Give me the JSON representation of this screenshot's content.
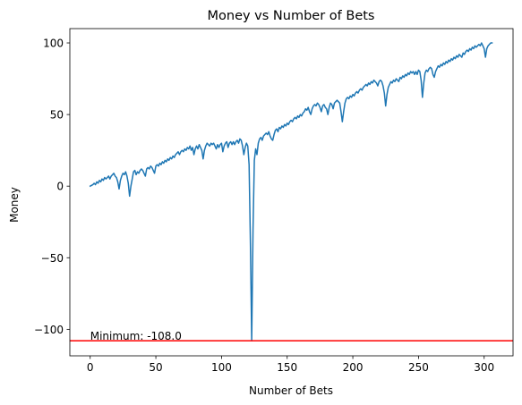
{
  "chart_data": {
    "type": "line",
    "title": "Money vs Number of Bets",
    "xlabel": "Number of Bets",
    "ylabel": "Money",
    "xlim": [
      -15.5,
      322
    ],
    "ylim": [
      -118.5,
      110
    ],
    "xticks": [
      0,
      50,
      100,
      150,
      200,
      250,
      300
    ],
    "yticks": [
      -100,
      -50,
      0,
      50,
      100
    ],
    "ytick_labels": [
      "−100",
      "−50",
      "0",
      "50",
      "100"
    ],
    "grid": false,
    "series": [
      {
        "color": "#1f77b4",
        "points": [
          [
            0,
            0
          ],
          [
            2,
            1
          ],
          [
            3,
            2
          ],
          [
            4,
            1
          ],
          [
            5,
            3
          ],
          [
            6,
            2
          ],
          [
            7,
            4
          ],
          [
            8,
            3
          ],
          [
            9,
            5
          ],
          [
            10,
            4
          ],
          [
            11,
            6
          ],
          [
            12,
            5
          ],
          [
            13,
            6
          ],
          [
            14,
            7
          ],
          [
            15,
            5
          ],
          [
            16,
            7
          ],
          [
            17,
            8
          ],
          [
            18,
            9
          ],
          [
            19,
            7
          ],
          [
            20,
            6
          ],
          [
            21,
            3
          ],
          [
            22,
            -2
          ],
          [
            23,
            4
          ],
          [
            24,
            7
          ],
          [
            25,
            9
          ],
          [
            26,
            8
          ],
          [
            27,
            10
          ],
          [
            28,
            7
          ],
          [
            29,
            2
          ],
          [
            30,
            -7
          ],
          [
            31,
            0
          ],
          [
            32,
            5
          ],
          [
            33,
            10
          ],
          [
            34,
            11
          ],
          [
            35,
            8
          ],
          [
            36,
            10
          ],
          [
            37,
            9
          ],
          [
            38,
            11
          ],
          [
            39,
            12
          ],
          [
            40,
            11
          ],
          [
            41,
            9
          ],
          [
            42,
            7
          ],
          [
            43,
            12
          ],
          [
            44,
            13
          ],
          [
            45,
            12
          ],
          [
            46,
            14
          ],
          [
            47,
            13
          ],
          [
            48,
            11
          ],
          [
            49,
            9
          ],
          [
            50,
            14
          ],
          [
            51,
            15
          ],
          [
            52,
            14
          ],
          [
            53,
            16
          ],
          [
            54,
            15
          ],
          [
            55,
            17
          ],
          [
            56,
            16
          ],
          [
            57,
            18
          ],
          [
            58,
            17
          ],
          [
            59,
            19
          ],
          [
            60,
            18
          ],
          [
            61,
            20
          ],
          [
            62,
            19
          ],
          [
            63,
            21
          ],
          [
            64,
            20
          ],
          [
            65,
            22
          ],
          [
            66,
            23
          ],
          [
            67,
            24
          ],
          [
            68,
            22
          ],
          [
            69,
            24
          ],
          [
            70,
            25
          ],
          [
            71,
            24
          ],
          [
            72,
            26
          ],
          [
            73,
            25
          ],
          [
            74,
            27
          ],
          [
            75,
            26
          ],
          [
            76,
            28
          ],
          [
            77,
            25
          ],
          [
            78,
            27
          ],
          [
            79,
            22
          ],
          [
            80,
            26
          ],
          [
            81,
            28
          ],
          [
            82,
            26
          ],
          [
            83,
            29
          ],
          [
            84,
            27
          ],
          [
            85,
            25
          ],
          [
            86,
            19
          ],
          [
            87,
            25
          ],
          [
            88,
            28
          ],
          [
            89,
            30
          ],
          [
            90,
            29
          ],
          [
            91,
            28
          ],
          [
            92,
            30
          ],
          [
            93,
            29
          ],
          [
            94,
            30
          ],
          [
            95,
            28
          ],
          [
            96,
            26
          ],
          [
            97,
            29
          ],
          [
            98,
            27
          ],
          [
            99,
            29
          ],
          [
            100,
            30
          ],
          [
            101,
            24
          ],
          [
            102,
            28
          ],
          [
            103,
            30
          ],
          [
            104,
            31
          ],
          [
            105,
            27
          ],
          [
            106,
            30
          ],
          [
            107,
            31
          ],
          [
            108,
            29
          ],
          [
            109,
            31
          ],
          [
            110,
            29
          ],
          [
            111,
            31
          ],
          [
            112,
            32
          ],
          [
            113,
            30
          ],
          [
            114,
            33
          ],
          [
            115,
            32
          ],
          [
            116,
            28
          ],
          [
            117,
            22
          ],
          [
            118,
            27
          ],
          [
            119,
            30
          ],
          [
            120,
            28
          ],
          [
            121,
            15
          ],
          [
            122,
            -40
          ],
          [
            123,
            -108
          ],
          [
            124,
            -30
          ],
          [
            125,
            18
          ],
          [
            126,
            26
          ],
          [
            127,
            22
          ],
          [
            128,
            30
          ],
          [
            129,
            33
          ],
          [
            130,
            34
          ],
          [
            131,
            32
          ],
          [
            132,
            35
          ],
          [
            133,
            36
          ],
          [
            134,
            37
          ],
          [
            135,
            36
          ],
          [
            136,
            38
          ],
          [
            137,
            35
          ],
          [
            138,
            33
          ],
          [
            139,
            32
          ],
          [
            140,
            36
          ],
          [
            141,
            39
          ],
          [
            142,
            40
          ],
          [
            143,
            38
          ],
          [
            144,
            41
          ],
          [
            145,
            40
          ],
          [
            146,
            42
          ],
          [
            147,
            41
          ],
          [
            148,
            43
          ],
          [
            149,
            42
          ],
          [
            150,
            44
          ],
          [
            151,
            43
          ],
          [
            152,
            45
          ],
          [
            153,
            46
          ],
          [
            154,
            45
          ],
          [
            155,
            47
          ],
          [
            156,
            48
          ],
          [
            157,
            47
          ],
          [
            158,
            49
          ],
          [
            159,
            48
          ],
          [
            160,
            50
          ],
          [
            161,
            49
          ],
          [
            162,
            51
          ],
          [
            163,
            52
          ],
          [
            164,
            54
          ],
          [
            165,
            53
          ],
          [
            166,
            55
          ],
          [
            167,
            52
          ],
          [
            168,
            50
          ],
          [
            169,
            54
          ],
          [
            170,
            56
          ],
          [
            171,
            57
          ],
          [
            172,
            56
          ],
          [
            173,
            58
          ],
          [
            174,
            57
          ],
          [
            175,
            55
          ],
          [
            176,
            52
          ],
          [
            177,
            56
          ],
          [
            178,
            57
          ],
          [
            179,
            55
          ],
          [
            180,
            54
          ],
          [
            181,
            50
          ],
          [
            182,
            55
          ],
          [
            183,
            58
          ],
          [
            184,
            57
          ],
          [
            185,
            54
          ],
          [
            186,
            58
          ],
          [
            187,
            59
          ],
          [
            188,
            60
          ],
          [
            189,
            59
          ],
          [
            190,
            58
          ],
          [
            191,
            52
          ],
          [
            192,
            45
          ],
          [
            193,
            52
          ],
          [
            194,
            58
          ],
          [
            195,
            61
          ],
          [
            196,
            62
          ],
          [
            197,
            61
          ],
          [
            198,
            63
          ],
          [
            199,
            62
          ],
          [
            200,
            64
          ],
          [
            201,
            63
          ],
          [
            202,
            65
          ],
          [
            203,
            66
          ],
          [
            204,
            65
          ],
          [
            205,
            67
          ],
          [
            206,
            68
          ],
          [
            207,
            67
          ],
          [
            208,
            69
          ],
          [
            209,
            70
          ],
          [
            210,
            71
          ],
          [
            211,
            70
          ],
          [
            212,
            72
          ],
          [
            213,
            71
          ],
          [
            214,
            73
          ],
          [
            215,
            72
          ],
          [
            216,
            74
          ],
          [
            217,
            73
          ],
          [
            218,
            72
          ],
          [
            219,
            70
          ],
          [
            220,
            73
          ],
          [
            221,
            74
          ],
          [
            222,
            73
          ],
          [
            223,
            70
          ],
          [
            224,
            65
          ],
          [
            225,
            56
          ],
          [
            226,
            64
          ],
          [
            227,
            69
          ],
          [
            228,
            71
          ],
          [
            229,
            73
          ],
          [
            230,
            72
          ],
          [
            231,
            74
          ],
          [
            232,
            73
          ],
          [
            233,
            75
          ],
          [
            234,
            74
          ],
          [
            235,
            73
          ],
          [
            236,
            76
          ],
          [
            237,
            75
          ],
          [
            238,
            77
          ],
          [
            239,
            76
          ],
          [
            240,
            78
          ],
          [
            241,
            77
          ],
          [
            242,
            79
          ],
          [
            243,
            78
          ],
          [
            244,
            80
          ],
          [
            245,
            79
          ],
          [
            246,
            80
          ],
          [
            247,
            78
          ],
          [
            248,
            80
          ],
          [
            249,
            78
          ],
          [
            250,
            81
          ],
          [
            251,
            80
          ],
          [
            252,
            74
          ],
          [
            253,
            62
          ],
          [
            254,
            72
          ],
          [
            255,
            79
          ],
          [
            256,
            81
          ],
          [
            257,
            80
          ],
          [
            258,
            82
          ],
          [
            259,
            83
          ],
          [
            260,
            82
          ],
          [
            261,
            78
          ],
          [
            262,
            76
          ],
          [
            263,
            80
          ],
          [
            264,
            82
          ],
          [
            265,
            84
          ],
          [
            266,
            83
          ],
          [
            267,
            85
          ],
          [
            268,
            84
          ],
          [
            269,
            86
          ],
          [
            270,
            85
          ],
          [
            271,
            87
          ],
          [
            272,
            86
          ],
          [
            273,
            88
          ],
          [
            274,
            87
          ],
          [
            275,
            89
          ],
          [
            276,
            88
          ],
          [
            277,
            90
          ],
          [
            278,
            89
          ],
          [
            279,
            91
          ],
          [
            280,
            90
          ],
          [
            281,
            92
          ],
          [
            282,
            91
          ],
          [
            283,
            90
          ],
          [
            284,
            93
          ],
          [
            285,
            92
          ],
          [
            286,
            94
          ],
          [
            287,
            95
          ],
          [
            288,
            94
          ],
          [
            289,
            96
          ],
          [
            290,
            95
          ],
          [
            291,
            97
          ],
          [
            292,
            96
          ],
          [
            293,
            98
          ],
          [
            294,
            97
          ],
          [
            295,
            98
          ],
          [
            296,
            99
          ],
          [
            297,
            98
          ],
          [
            298,
            100
          ],
          [
            299,
            98
          ],
          [
            300,
            96
          ],
          [
            301,
            90
          ],
          [
            302,
            96
          ],
          [
            303,
            98
          ],
          [
            304,
            99
          ],
          [
            305,
            100
          ],
          [
            306,
            100
          ]
        ]
      }
    ],
    "hline": {
      "y": -108,
      "color": "#ff0000"
    },
    "annotations": [
      {
        "text": "Minimum: -108.0",
        "x": 0,
        "y": -108
      }
    ]
  }
}
